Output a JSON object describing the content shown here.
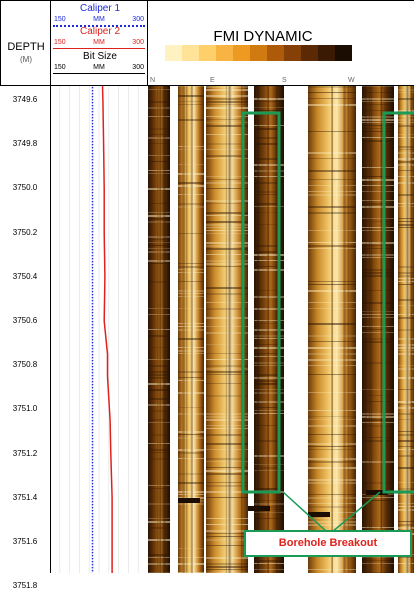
{
  "header": {
    "depth_label": "DEPTH",
    "depth_unit": "(M)",
    "image_title": "FMI DYNAMIC"
  },
  "curves": [
    {
      "name": "Caliper 1",
      "scale_min": "150",
      "unit": "MM",
      "scale_max": "300",
      "color": "#1f2bd6",
      "line_style": "dotted"
    },
    {
      "name": "Caliper 2",
      "scale_min": "150",
      "unit": "MM",
      "scale_max": "300",
      "color": "#e0221d",
      "line_style": "solid"
    },
    {
      "name": "Bit Size",
      "scale_min": "150",
      "unit": "MM",
      "scale_max": "300",
      "color": "#000000",
      "line_style": "solid"
    }
  ],
  "azimuth_labels": [
    "N",
    "E",
    "S",
    "W"
  ],
  "depth_ticks": [
    "3749.6",
    "3749.8",
    "3750.0",
    "3750.2",
    "3750.4",
    "3750.6",
    "3750.8",
    "3751.0",
    "3751.2",
    "3751.4",
    "3751.6",
    "3751.8"
  ],
  "color_scale": [
    "#ffffff",
    "#fff2c2",
    "#ffe497",
    "#ffd06a",
    "#f7b443",
    "#ec9a22",
    "#d27a12",
    "#ad5a0b",
    "#844007",
    "#5b2a05",
    "#3a1a03",
    "#1c0d02"
  ],
  "annotation": {
    "label": "Borehole Breakout",
    "box_color": "#1a9a55",
    "text_color": "#e0221d"
  },
  "chart_data": {
    "type": "line",
    "depth_axis": [
      "3749.6",
      "3749.8",
      "3750.0",
      "3750.2",
      "3750.4",
      "3750.6",
      "3750.8",
      "3751.0",
      "3751.2",
      "3751.4",
      "3751.6",
      "3751.8"
    ],
    "curve_range": [
      150,
      300
    ],
    "series": [
      {
        "name": "Caliper 1",
        "depth": [
          3749.5,
          3751.9
        ],
        "values": [
          215,
          215
        ]
      },
      {
        "name": "Caliper 2",
        "depth": [
          3749.5,
          3749.6,
          3749.8,
          3750.0,
          3750.2,
          3750.4,
          3750.6,
          3750.75,
          3750.85,
          3750.95,
          3751.05,
          3751.2,
          3751.4,
          3751.6,
          3751.8,
          3751.9
        ],
        "values": [
          230,
          231,
          232,
          233,
          233,
          234,
          233,
          238,
          238,
          240,
          242,
          243,
          245,
          245,
          245,
          245
        ]
      }
    ]
  }
}
